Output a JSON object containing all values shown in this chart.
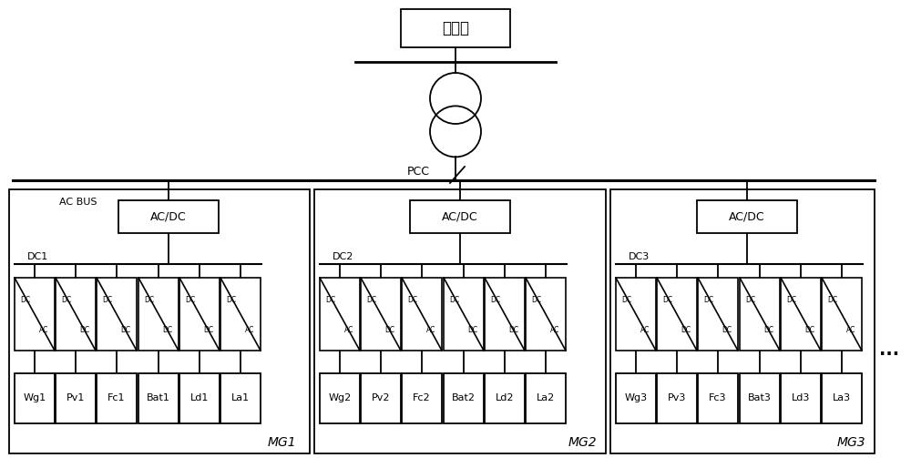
{
  "bg_color": "#ffffff",
  "figsize": [
    10.0,
    5.03
  ],
  "dpi": 100,
  "grid_box_label": "配电网",
  "pcc_label": "PCC",
  "ac_bus_label": "AC BUS",
  "mg_groups": [
    {
      "name": "MG1",
      "acdc_label": "AC/DC",
      "dc_label": "DC1",
      "converters": [
        {
          "label_top": "DC",
          "label_bot": "AC"
        },
        {
          "label_top": "DC",
          "label_bot": "DC"
        },
        {
          "label_top": "DC",
          "label_bot": "DC"
        },
        {
          "label_top": "DC",
          "label_bot": "DC"
        },
        {
          "label_top": "DC",
          "label_bot": "DC"
        },
        {
          "label_top": "DC",
          "label_bot": "AC"
        }
      ],
      "devices": [
        "Wg1",
        "Pv1",
        "Fc1",
        "Bat1",
        "Ld1",
        "La1"
      ]
    },
    {
      "name": "MG2",
      "acdc_label": "AC/DC",
      "dc_label": "DC2",
      "converters": [
        {
          "label_top": "DC",
          "label_bot": "AC"
        },
        {
          "label_top": "DC",
          "label_bot": "DC"
        },
        {
          "label_top": "DC",
          "label_bot": "AC"
        },
        {
          "label_top": "DC",
          "label_bot": "DC"
        },
        {
          "label_top": "DC",
          "label_bot": "DC"
        },
        {
          "label_top": "DC",
          "label_bot": "AC"
        }
      ],
      "devices": [
        "Wg2",
        "Pv2",
        "Fc2",
        "Bat2",
        "Ld2",
        "La2"
      ]
    },
    {
      "name": "MG3",
      "acdc_label": "AC/DC",
      "dc_label": "DC3",
      "converters": [
        {
          "label_top": "DC",
          "label_bot": "AC"
        },
        {
          "label_top": "DC",
          "label_bot": "DC"
        },
        {
          "label_top": "DC",
          "label_bot": "DC"
        },
        {
          "label_top": "DC",
          "label_bot": "DC"
        },
        {
          "label_top": "DC",
          "label_bot": "DC"
        },
        {
          "label_top": "DC",
          "label_bot": "AC"
        }
      ],
      "devices": [
        "Wg3",
        "Pv3",
        "Fc3",
        "Bat3",
        "Ld3",
        "La3"
      ]
    }
  ]
}
